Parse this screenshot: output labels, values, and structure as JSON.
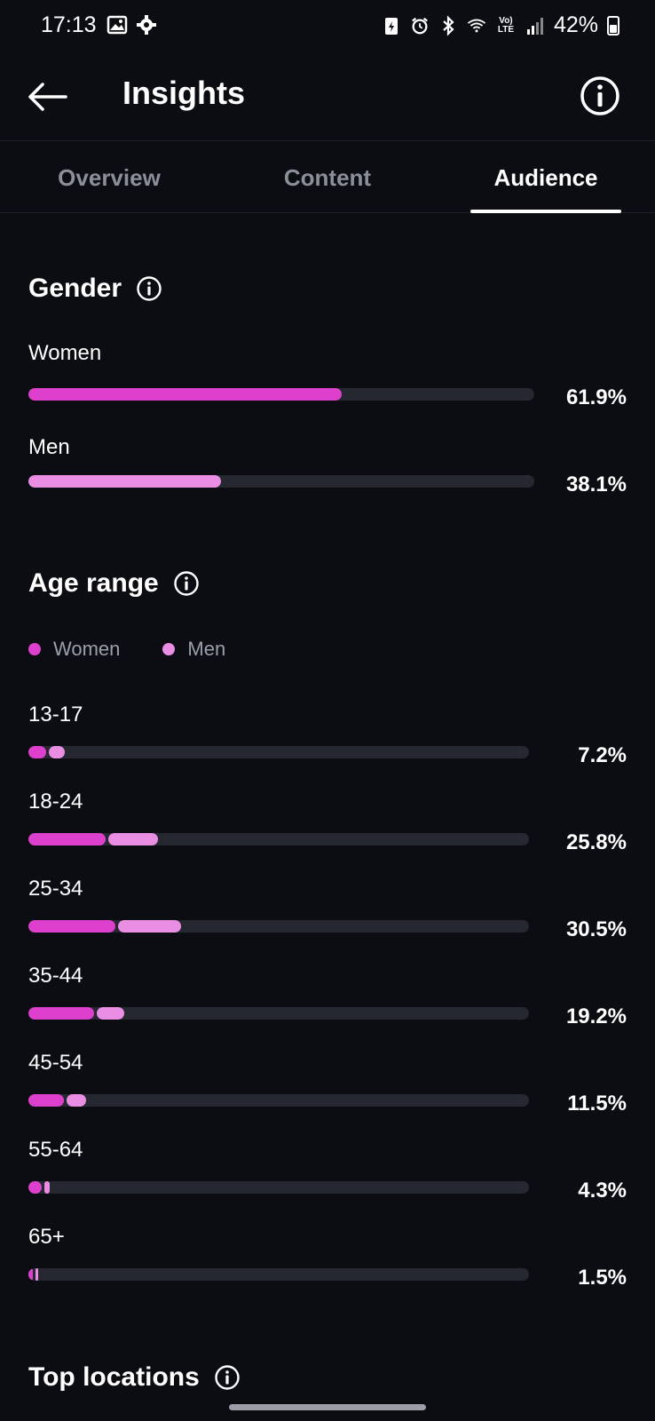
{
  "status": {
    "time": "17:13",
    "battery": "42%",
    "network_label": "Vo) LTE"
  },
  "header": {
    "title": "Insights"
  },
  "tabs": [
    {
      "label": "Overview",
      "active": false
    },
    {
      "label": "Content",
      "active": false
    },
    {
      "label": "Audience",
      "active": true
    }
  ],
  "gender": {
    "title": "Gender",
    "rows": [
      {
        "label": "Women",
        "value": 61.9,
        "pct": "61.9%"
      },
      {
        "label": "Men",
        "value": 38.1,
        "pct": "38.1%"
      }
    ]
  },
  "age": {
    "title": "Age range",
    "legend": {
      "women": "Women",
      "men": "Men"
    },
    "rows": [
      {
        "label": "13-17",
        "pct": "7.2%",
        "total": 7.2,
        "women_share": 0.5
      },
      {
        "label": "18-24",
        "pct": "25.8%",
        "total": 25.8,
        "women_share": 0.6
      },
      {
        "label": "25-34",
        "pct": "30.5%",
        "total": 30.5,
        "women_share": 0.57
      },
      {
        "label": "35-44",
        "pct": "19.2%",
        "total": 19.2,
        "women_share": 0.68
      },
      {
        "label": "45-54",
        "pct": "11.5%",
        "total": 11.5,
        "women_share": 0.61
      },
      {
        "label": "55-64",
        "pct": "4.3%",
        "total": 4.3,
        "women_share": 0.6
      },
      {
        "label": "65+",
        "pct": "1.5%",
        "total": 1.5,
        "women_share": 0.6
      }
    ]
  },
  "locations": {
    "title": "Top locations"
  },
  "colors": {
    "women": "#dd40cc",
    "men": "#ea8ee3",
    "track": "#252830",
    "background": "#0b0d12"
  }
}
